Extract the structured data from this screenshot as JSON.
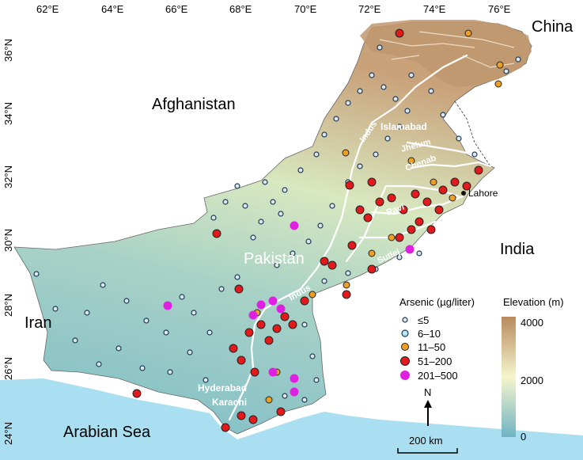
{
  "lon_ticks": [
    "62°E",
    "64°E",
    "66°E",
    "68°E",
    "70°E",
    "72°E",
    "74°E",
    "76°E"
  ],
  "lat_ticks": [
    "36°N",
    "34°N",
    "32°N",
    "30°N",
    "28°N",
    "26°N",
    "24°N"
  ],
  "countries": {
    "china": "China",
    "afghanistan": "Afghanistan",
    "pakistan": "Pakistan",
    "india": "India",
    "iran": "Iran",
    "sea": "Arabian Sea"
  },
  "cities": {
    "islamabad": "Islamabad",
    "lahore": "Lahore",
    "hyderabad": "Hyderabad",
    "karachi": "Karachi"
  },
  "rivers": {
    "indus_north": "Indus",
    "indus_south": "Indus",
    "jhelum": "Jhelum",
    "chenab": "Chenab",
    "ravi": "Ravi",
    "sutlej": "Sutlej"
  },
  "legend": {
    "title": "Arsenic (µg/liter)",
    "items": [
      {
        "label": "≤5",
        "color": "#1b3a57",
        "fill": "#dfe7ec"
      },
      {
        "label": "6–10",
        "color": "#1b3a57",
        "fill": "#bde6f5"
      },
      {
        "label": "11–50",
        "color": "#222",
        "fill": "#f0a020"
      },
      {
        "label": "51–200",
        "color": "#222",
        "fill": "#e31a1c"
      },
      {
        "label": "201–500",
        "color": "#e020e0",
        "fill": "#e020e0"
      }
    ]
  },
  "elevation": {
    "title": "Elevation (m)",
    "max": "4000",
    "mid": "2000",
    "min": "0"
  },
  "scale": {
    "north": "N",
    "label": "200 km"
  },
  "colors": {
    "sea": "#a9dff0",
    "land": "#ffffff",
    "low": "#6fb3c4",
    "mid": "#f5f5c8",
    "high": "#b98a5e"
  }
}
